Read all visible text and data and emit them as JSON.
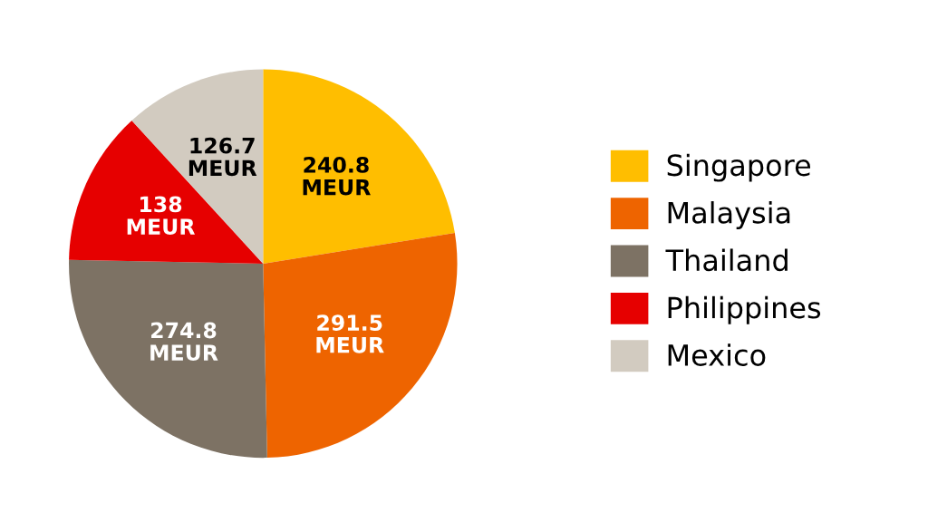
{
  "chart_data": {
    "type": "pie",
    "categories": [
      "Singapore",
      "Malaysia",
      "Thailand",
      "Philippines",
      "Mexico"
    ],
    "values": [
      240.8,
      291.5,
      274.8,
      138,
      126.7
    ],
    "colors": [
      "#ffbe00",
      "#ee6400",
      "#7d7264",
      "#e60000",
      "#d2cbc0"
    ],
    "value_labels": [
      "240.8\nMEUR",
      "291.5\nMEUR",
      "274.8\nMEUR",
      "138\nMEUR",
      "126.7\nMEUR"
    ],
    "legend": "right"
  }
}
